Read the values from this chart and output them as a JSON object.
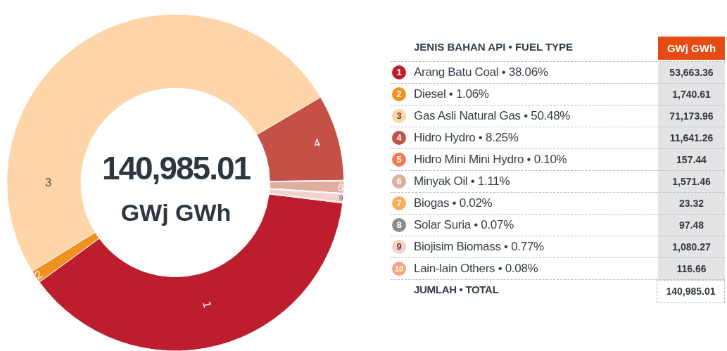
{
  "chart_data": {
    "type": "donut",
    "legend_title": "JENIS BAHAN API • FUEL TYPE",
    "legend": "right",
    "categories": [
      "Arang Batu Coal • 38.06%",
      "Diesel • 1.06%",
      "Gas Asli Natural Gas • 50.48%",
      "Hidro Hydro • 8.25%",
      "Hidro Mini Mini Hydro • 0.10%",
      "Minyak Oil • 1.11%",
      "Biogas • 0.02%",
      "Solar Suria • 0.07%",
      "Biojisim Biomass • 0.77%",
      "Lain-lain Others • 0.08%"
    ],
    "values": [
      53663.36,
      1740.61,
      71173.96,
      11641.26,
      157.44,
      1571.46,
      23.32,
      97.48,
      1080.27,
      116.66
    ],
    "value_labels": [
      "53,663.36",
      "1,740.61",
      "71,173.96",
      "11,641.26",
      "157.44",
      "1,571.46",
      "23.32",
      "97.48",
      "1,080.27",
      "116.66"
    ],
    "colors": [
      "#bd1e2d",
      "#f0901e",
      "#fdd5a8",
      "#c55046",
      "#f47c50",
      "#e0ad9f",
      "#f8b05a",
      "#8a8c8e",
      "#f2d3cb",
      "#f9a27e"
    ],
    "totals": [
      "140,985.01"
    ],
    "annotations": [
      "GWj GWh",
      "JUMLAH • TOTAL",
      {
        "text": "1",
        "x": "Arang Batu Coal • 38.06%"
      },
      {
        "text": "2",
        "x": "Diesel • 1.06%"
      },
      {
        "text": "3",
        "x": "Gas Asli Natural Gas • 50.48%"
      },
      {
        "text": "4",
        "x": "Hidro Hydro • 8.25%"
      },
      {
        "text": "5",
        "x": "Hidro Mini Mini Hydro • 0.10%"
      },
      {
        "text": "6",
        "x": "Minyak Oil • 1.11%"
      },
      {
        "text": "7",
        "x": "Biogas • 0.02%"
      },
      {
        "text": "8",
        "x": "Solar Suria • 0.07%"
      },
      {
        "text": "9",
        "x": "Biojisim Biomass • 0.77%"
      },
      {
        "text": "10",
        "x": "Lain-lain Others • 0.08%"
      }
    ]
  }
}
